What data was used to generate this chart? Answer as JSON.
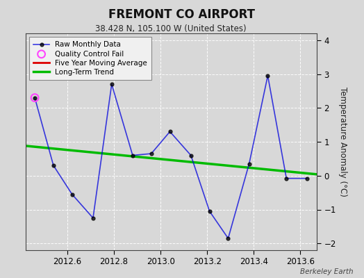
{
  "title": "FREMONT CO AIRPORT",
  "subtitle": "38.428 N, 105.100 W (United States)",
  "ylabel": "Temperature Anomaly (°C)",
  "attribution": "Berkeley Earth",
  "xlim": [
    2012.42,
    2013.67
  ],
  "ylim": [
    -2.2,
    4.2
  ],
  "yticks": [
    -2,
    -1,
    0,
    1,
    2,
    3,
    4
  ],
  "xticks": [
    2012.6,
    2012.8,
    2013.0,
    2013.2,
    2013.4,
    2013.6
  ],
  "background_color": "#d8d8d8",
  "plot_bg_color": "#d8d8d8",
  "raw_x": [
    2012.46,
    2012.54,
    2012.62,
    2012.71,
    2012.79,
    2012.88,
    2012.96,
    2013.04,
    2013.13,
    2013.21,
    2013.29,
    2013.38,
    2013.46,
    2013.54,
    2013.63
  ],
  "raw_y": [
    2.3,
    0.3,
    -0.55,
    -1.25,
    2.7,
    0.6,
    0.65,
    1.3,
    0.6,
    -1.05,
    -1.85,
    0.35,
    2.95,
    -0.08,
    -0.08
  ],
  "qc_fail_x": [
    2012.46
  ],
  "qc_fail_y": [
    2.3
  ],
  "trend_x": [
    2012.42,
    2013.67
  ],
  "trend_y": [
    0.88,
    0.04
  ],
  "moving_avg_x": [],
  "moving_avg_y": [],
  "line_color": "#0000dd",
  "line_alpha": 0.75,
  "marker_color": "#000000",
  "marker_size": 3.5,
  "qc_color": "#ff44ff",
  "trend_color": "#00bb00",
  "moving_avg_color": "#dd0000",
  "grid_color": "#ffffff",
  "grid_alpha": 0.9,
  "grid_linestyle": "--"
}
